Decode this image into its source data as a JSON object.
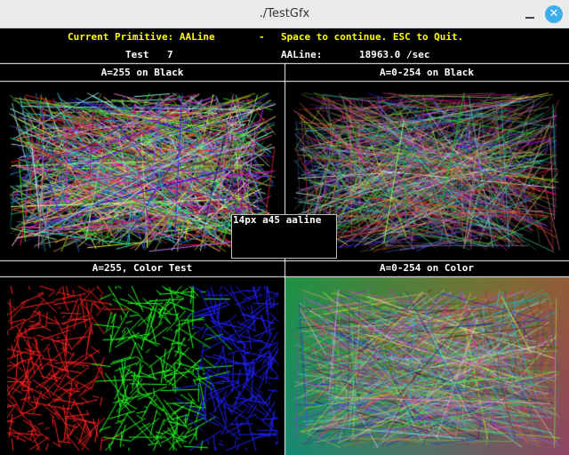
{
  "window": {
    "title": "./TestGfx",
    "minimize_icon": "minimize-icon",
    "close_icon": "close-icon",
    "close_glyph": "✕"
  },
  "header": {
    "primitive_prefix": "Current Primitive: ",
    "primitive_name": "AALine",
    "separator": "-",
    "instructions": "Space to continue. ESC to Quit.",
    "test_label": "Test",
    "test_number": "7",
    "rate_label": "AALine:",
    "rate_value": "18963.0 /sec"
  },
  "panels": {
    "top_left": "A=255 on Black",
    "top_right": "A=0-254 on Black",
    "bottom_left": "A=255, Color Test",
    "bottom_right": "A=0-254 on Color"
  },
  "inset": {
    "label": "14px a45 aaline"
  },
  "colors": {
    "header_text": "#ffff00",
    "label_text": "#ffffff",
    "background": "#000000",
    "grid": "#ffffff"
  }
}
